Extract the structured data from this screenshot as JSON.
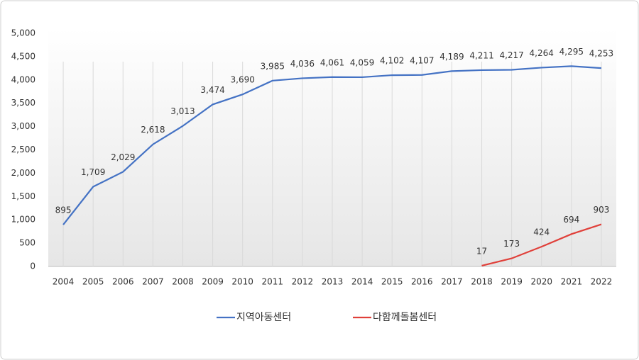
{
  "chart_data": {
    "type": "line",
    "categories": [
      "2004",
      "2005",
      "2006",
      "2007",
      "2008",
      "2009",
      "2010",
      "2011",
      "2012",
      "2013",
      "2014",
      "2015",
      "2016",
      "2017",
      "2018",
      "2019",
      "2020",
      "2021",
      "2022"
    ],
    "series": [
      {
        "name": "지역아동센터",
        "color": "#4472c4",
        "values": [
          895,
          1709,
          2029,
          2618,
          3013,
          3474,
          3690,
          3985,
          4036,
          4061,
          4059,
          4102,
          4107,
          4189,
          4211,
          4217,
          4264,
          4295,
          4253
        ],
        "value_labels": [
          "895",
          "1,709",
          "2,029",
          "2,618",
          "3,013",
          "3,474",
          "3,690",
          "3,985",
          "4,036",
          "4,061",
          "4,059",
          "4,102",
          "4,107",
          "4,189",
          "4,211",
          "4,217",
          "4,264",
          "4,295",
          "4,253"
        ]
      },
      {
        "name": "다함께돌봄센터",
        "color": "#e0403a",
        "values": [
          null,
          null,
          null,
          null,
          null,
          null,
          null,
          null,
          null,
          null,
          null,
          null,
          null,
          null,
          17,
          173,
          424,
          694,
          903
        ],
        "value_labels": [
          null,
          null,
          null,
          null,
          null,
          null,
          null,
          null,
          null,
          null,
          null,
          null,
          null,
          null,
          "17",
          "173",
          "424",
          "694",
          "903"
        ]
      }
    ],
    "ylim": [
      0,
      5000
    ],
    "yticks": [
      0,
      500,
      {
        "value": 1000,
        "label": "1,000"
      },
      {
        "value": 1500,
        "label": "1,500"
      },
      {
        "value": 2000,
        "label": "2,000"
      },
      {
        "value": 2500,
        "label": "2,500"
      },
      {
        "value": 3000,
        "label": "3,000"
      },
      {
        "value": 3500,
        "label": "3,500"
      },
      {
        "value": 4000,
        "label": "4,000"
      },
      {
        "value": 4500,
        "label": "4,500"
      },
      {
        "value": 5000,
        "label": "5,000"
      }
    ],
    "legend": "bottom"
  }
}
